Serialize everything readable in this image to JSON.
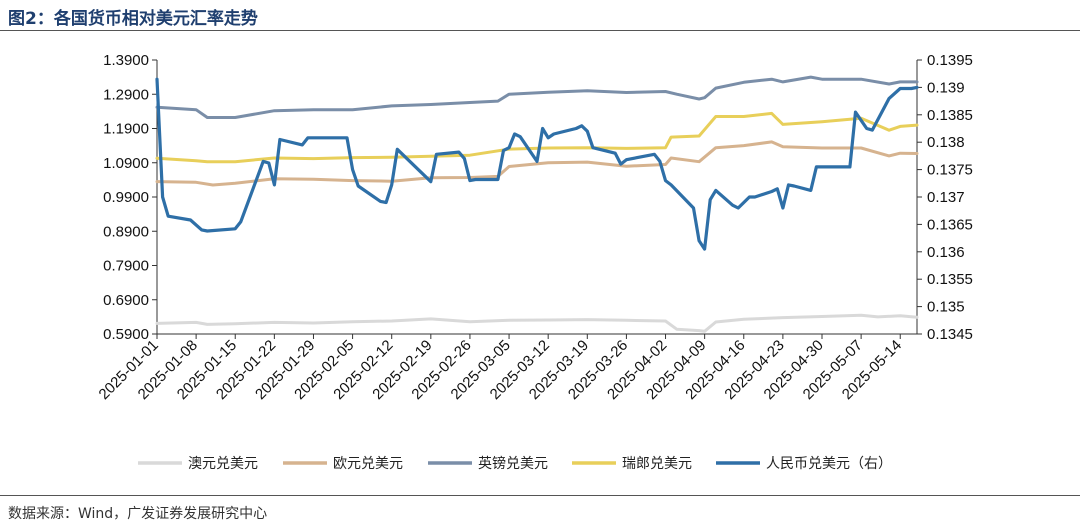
{
  "page": {
    "title": "图2：各国货币相对美元汇率走势",
    "source": "数据来源：Wind，广发证券发展研究中心"
  },
  "chart_data": {
    "type": "line",
    "title": "图2：各国货币相对美元汇率走势",
    "grid": false,
    "legend_position": "bottom",
    "y_left": {
      "range": [
        0.59,
        1.39
      ],
      "ticks": [
        "1.3900",
        "1.2900",
        "1.1900",
        "1.0900",
        "0.9900",
        "0.8900",
        "0.7900",
        "0.6900",
        "0.5900"
      ]
    },
    "y_right": {
      "range": [
        0.1345,
        0.1395
      ],
      "ticks": [
        "0.1395",
        "0.139",
        "0.1385",
        "0.138",
        "0.1375",
        "0.137",
        "0.1365",
        "0.136",
        "0.1355",
        "0.135",
        "0.1345"
      ]
    },
    "x_ticks": [
      "2025-01-01",
      "2025-01-08",
      "2025-01-15",
      "2025-01-22",
      "2025-01-29",
      "2025-02-05",
      "2025-02-12",
      "2025-02-19",
      "2025-02-26",
      "2025-03-05",
      "2025-03-12",
      "2025-03-19",
      "2025-03-26",
      "2025-04-02",
      "2025-04-09",
      "2025-04-16",
      "2025-04-23",
      "2025-04-30",
      "2025-05-07",
      "2025-05-14"
    ],
    "series": [
      {
        "name": "澳元兑美元",
        "color": "#d9d9d9",
        "axis": "left",
        "points": [
          [
            "2025-01-01",
            0.621
          ],
          [
            "2025-01-08",
            0.624
          ],
          [
            "2025-01-10",
            0.618
          ],
          [
            "2025-01-15",
            0.62
          ],
          [
            "2025-01-22",
            0.624
          ],
          [
            "2025-01-29",
            0.622
          ],
          [
            "2025-02-05",
            0.626
          ],
          [
            "2025-02-12",
            0.628
          ],
          [
            "2025-02-19",
            0.634
          ],
          [
            "2025-02-26",
            0.626
          ],
          [
            "2025-03-05",
            0.63
          ],
          [
            "2025-03-12",
            0.631
          ],
          [
            "2025-03-19",
            0.632
          ],
          [
            "2025-03-26",
            0.63
          ],
          [
            "2025-04-02",
            0.628
          ],
          [
            "2025-04-04",
            0.604
          ],
          [
            "2025-04-08",
            0.6
          ],
          [
            "2025-04-09",
            0.598
          ],
          [
            "2025-04-11",
            0.625
          ],
          [
            "2025-04-16",
            0.633
          ],
          [
            "2025-04-23",
            0.638
          ],
          [
            "2025-04-30",
            0.641
          ],
          [
            "2025-05-07",
            0.645
          ],
          [
            "2025-05-10",
            0.64
          ],
          [
            "2025-05-14",
            0.643
          ],
          [
            "2025-05-17",
            0.639
          ]
        ]
      },
      {
        "name": "欧元兑美元",
        "color": "#d6b38f",
        "axis": "left",
        "points": [
          [
            "2025-01-01",
            1.035
          ],
          [
            "2025-01-08",
            1.033
          ],
          [
            "2025-01-11",
            1.025
          ],
          [
            "2025-01-15",
            1.03
          ],
          [
            "2025-01-22",
            1.043
          ],
          [
            "2025-01-29",
            1.042
          ],
          [
            "2025-02-05",
            1.038
          ],
          [
            "2025-02-12",
            1.036
          ],
          [
            "2025-02-19",
            1.046
          ],
          [
            "2025-02-26",
            1.047
          ],
          [
            "2025-03-03",
            1.05
          ],
          [
            "2025-03-05",
            1.079
          ],
          [
            "2025-03-12",
            1.09
          ],
          [
            "2025-03-19",
            1.092
          ],
          [
            "2025-03-26",
            1.08
          ],
          [
            "2025-04-02",
            1.085
          ],
          [
            "2025-04-03",
            1.104
          ],
          [
            "2025-04-08",
            1.093
          ],
          [
            "2025-04-11",
            1.134
          ],
          [
            "2025-04-16",
            1.14
          ],
          [
            "2025-04-21",
            1.151
          ],
          [
            "2025-04-23",
            1.137
          ],
          [
            "2025-04-30",
            1.133
          ],
          [
            "2025-05-07",
            1.133
          ],
          [
            "2025-05-12",
            1.11
          ],
          [
            "2025-05-14",
            1.118
          ],
          [
            "2025-05-17",
            1.117
          ]
        ]
      },
      {
        "name": "英镑兑美元",
        "color": "#7a8ea8",
        "axis": "left",
        "points": [
          [
            "2025-01-01",
            1.252
          ],
          [
            "2025-01-08",
            1.245
          ],
          [
            "2025-01-10",
            1.222
          ],
          [
            "2025-01-15",
            1.222
          ],
          [
            "2025-01-22",
            1.242
          ],
          [
            "2025-01-29",
            1.245
          ],
          [
            "2025-02-05",
            1.245
          ],
          [
            "2025-02-12",
            1.256
          ],
          [
            "2025-02-19",
            1.26
          ],
          [
            "2025-02-26",
            1.266
          ],
          [
            "2025-03-03",
            1.27
          ],
          [
            "2025-03-05",
            1.29
          ],
          [
            "2025-03-12",
            1.296
          ],
          [
            "2025-03-19",
            1.3
          ],
          [
            "2025-03-26",
            1.295
          ],
          [
            "2025-04-02",
            1.298
          ],
          [
            "2025-04-04",
            1.29
          ],
          [
            "2025-04-08",
            1.276
          ],
          [
            "2025-04-09",
            1.28
          ],
          [
            "2025-04-11",
            1.308
          ],
          [
            "2025-04-16",
            1.325
          ],
          [
            "2025-04-21",
            1.334
          ],
          [
            "2025-04-23",
            1.326
          ],
          [
            "2025-04-28",
            1.34
          ],
          [
            "2025-04-30",
            1.334
          ],
          [
            "2025-05-07",
            1.334
          ],
          [
            "2025-05-12",
            1.32
          ],
          [
            "2025-05-14",
            1.326
          ],
          [
            "2025-05-17",
            1.326
          ]
        ]
      },
      {
        "name": "瑞郎兑美元",
        "color": "#e8cf5a",
        "axis": "left",
        "points": [
          [
            "2025-01-01",
            1.103
          ],
          [
            "2025-01-08",
            1.096
          ],
          [
            "2025-01-10",
            1.093
          ],
          [
            "2025-01-15",
            1.093
          ],
          [
            "2025-01-22",
            1.104
          ],
          [
            "2025-01-29",
            1.102
          ],
          [
            "2025-02-05",
            1.105
          ],
          [
            "2025-02-12",
            1.106
          ],
          [
            "2025-02-19",
            1.109
          ],
          [
            "2025-02-26",
            1.112
          ],
          [
            "2025-03-05",
            1.13
          ],
          [
            "2025-03-12",
            1.133
          ],
          [
            "2025-03-19",
            1.134
          ],
          [
            "2025-03-26",
            1.132
          ],
          [
            "2025-04-02",
            1.134
          ],
          [
            "2025-04-03",
            1.165
          ],
          [
            "2025-04-08",
            1.168
          ],
          [
            "2025-04-11",
            1.225
          ],
          [
            "2025-04-16",
            1.225
          ],
          [
            "2025-04-21",
            1.234
          ],
          [
            "2025-04-23",
            1.202
          ],
          [
            "2025-04-30",
            1.21
          ],
          [
            "2025-05-07",
            1.22
          ],
          [
            "2025-05-12",
            1.185
          ],
          [
            "2025-05-14",
            1.196
          ],
          [
            "2025-05-17",
            1.2
          ]
        ]
      },
      {
        "name": "人民币兑美元（右）",
        "color": "#2e6fa7",
        "axis": "right",
        "points": [
          [
            "2025-01-01",
            0.13915
          ],
          [
            "2025-01-02",
            0.137
          ],
          [
            "2025-01-03",
            0.13665
          ],
          [
            "2025-01-07",
            0.13658
          ],
          [
            "2025-01-09",
            0.1364
          ],
          [
            "2025-01-10",
            0.13638
          ],
          [
            "2025-01-15",
            0.13642
          ],
          [
            "2025-01-16",
            0.13655
          ],
          [
            "2025-01-20",
            0.13765
          ],
          [
            "2025-01-21",
            0.13762
          ],
          [
            "2025-01-22",
            0.13722
          ],
          [
            "2025-01-23",
            0.13805
          ],
          [
            "2025-01-27",
            0.13795
          ],
          [
            "2025-01-28",
            0.13808
          ],
          [
            "2025-02-04",
            0.13808
          ],
          [
            "2025-02-05",
            0.1375
          ],
          [
            "2025-02-06",
            0.1372
          ],
          [
            "2025-02-10",
            0.13692
          ],
          [
            "2025-02-11",
            0.1369
          ],
          [
            "2025-02-12",
            0.13722
          ],
          [
            "2025-02-13",
            0.13787
          ],
          [
            "2025-02-19",
            0.13728
          ],
          [
            "2025-02-20",
            0.13778
          ],
          [
            "2025-02-24",
            0.13782
          ],
          [
            "2025-02-25",
            0.1377
          ],
          [
            "2025-02-26",
            0.1373
          ],
          [
            "2025-02-27",
            0.13732
          ],
          [
            "2025-03-03",
            0.13732
          ],
          [
            "2025-03-04",
            0.13785
          ],
          [
            "2025-03-05",
            0.1379
          ],
          [
            "2025-03-06",
            0.13815
          ],
          [
            "2025-03-07",
            0.1381
          ],
          [
            "2025-03-10",
            0.13765
          ],
          [
            "2025-03-11",
            0.13825
          ],
          [
            "2025-03-12",
            0.13808
          ],
          [
            "2025-03-13",
            0.13815
          ],
          [
            "2025-03-17",
            0.13825
          ],
          [
            "2025-03-18",
            0.1383
          ],
          [
            "2025-03-19",
            0.1382
          ],
          [
            "2025-03-20",
            0.1379
          ],
          [
            "2025-03-24",
            0.1378
          ],
          [
            "2025-03-25",
            0.1376
          ],
          [
            "2025-03-26",
            0.13768
          ],
          [
            "2025-03-31",
            0.13778
          ],
          [
            "2025-04-01",
            0.13765
          ],
          [
            "2025-04-02",
            0.1373
          ],
          [
            "2025-04-03",
            0.13722
          ],
          [
            "2025-04-07",
            0.1368
          ],
          [
            "2025-04-08",
            0.1362
          ],
          [
            "2025-04-09",
            0.13605
          ],
          [
            "2025-04-10",
            0.13695
          ],
          [
            "2025-04-11",
            0.13712
          ],
          [
            "2025-04-14",
            0.13685
          ],
          [
            "2025-04-15",
            0.1368
          ],
          [
            "2025-04-17",
            0.137
          ],
          [
            "2025-04-18",
            0.137
          ],
          [
            "2025-04-21",
            0.1371
          ],
          [
            "2025-04-22",
            0.13715
          ],
          [
            "2025-04-23",
            0.1368
          ],
          [
            "2025-04-24",
            0.13722
          ],
          [
            "2025-04-25",
            0.1372
          ],
          [
            "2025-04-28",
            0.13712
          ],
          [
            "2025-04-29",
            0.13755
          ],
          [
            "2025-05-05",
            0.13755
          ],
          [
            "2025-05-06",
            0.13855
          ],
          [
            "2025-05-07",
            0.1384
          ],
          [
            "2025-05-08",
            0.13825
          ],
          [
            "2025-05-09",
            0.13822
          ],
          [
            "2025-05-12",
            0.1388
          ],
          [
            "2025-05-14",
            0.13898
          ],
          [
            "2025-05-16",
            0.13898
          ],
          [
            "2025-05-17",
            0.139
          ]
        ]
      }
    ]
  }
}
